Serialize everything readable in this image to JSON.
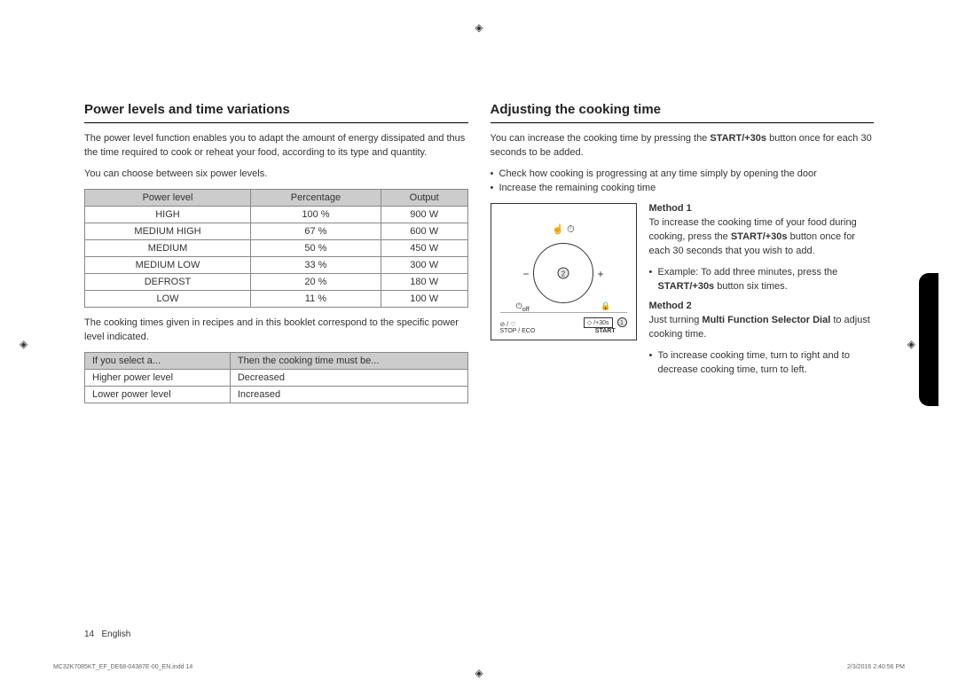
{
  "left": {
    "title": "Power levels and time variations",
    "intro1": "The power level function enables you to adapt the amount of energy dissipated and thus the time required to cook or reheat your food, according to its type and quantity.",
    "intro2": "You can choose between six power levels.",
    "power_table": {
      "headers": [
        "Power level",
        "Percentage",
        "Output"
      ],
      "rows": [
        [
          "HIGH",
          "100 %",
          "900 W"
        ],
        [
          "MEDIUM HIGH",
          "67 %",
          "600 W"
        ],
        [
          "MEDIUM",
          "50 %",
          "450 W"
        ],
        [
          "MEDIUM LOW",
          "33 %",
          "300 W"
        ],
        [
          "DEFROST",
          "20 %",
          "180 W"
        ],
        [
          "LOW",
          "11 %",
          "100 W"
        ]
      ]
    },
    "note": "The cooking times given in recipes and in this booklet correspond to the specific power level indicated.",
    "guide_table": {
      "headers": [
        "If you select a...",
        "Then the cooking time must be..."
      ],
      "rows": [
        [
          "Higher power level",
          "Decreased"
        ],
        [
          "Lower power level",
          "Increased"
        ]
      ]
    }
  },
  "right": {
    "title": "Adjusting the cooking time",
    "intro_pre": "You can increase the cooking time by pressing the ",
    "intro_bold": "START/+30s",
    "intro_post": " button once for each 30 seconds to be added.",
    "bullets": [
      "Check how cooking is progressing at any time simply by opening the door",
      "Increase the remaining cooking time"
    ],
    "method1": {
      "title": "Method 1",
      "text_pre": "To increase the cooking time of your food during cooking, press the ",
      "text_bold": "START/+30s",
      "text_post": " button once for each 30 seconds that you wish to add.",
      "example_pre": "Example: To add three minutes, press the ",
      "example_bold": "START/+30s",
      "example_post": " button six times."
    },
    "method2": {
      "title": "Method 2",
      "text_pre": "Just turning ",
      "text_bold": "Multi Function Selector Dial",
      "text_post": " to adjust cooking time.",
      "bullet": "To increase cooking time, turn to right and to decrease cooking time, turn to left."
    },
    "diagram": {
      "dial_num": "2",
      "start_num": "1",
      "minus": "−",
      "plus": "+",
      "off_label": "off",
      "stop_label": "STOP / ECO",
      "start_label": "START",
      "start_box": "◇ /+30s"
    }
  },
  "footer": {
    "page": "14",
    "lang": "English"
  },
  "tiny": {
    "left": "MC32K7085KT_EF_DE68-04387E-00_EN.indd   14",
    "right": "2/3/2016   2:40:56 PM"
  }
}
